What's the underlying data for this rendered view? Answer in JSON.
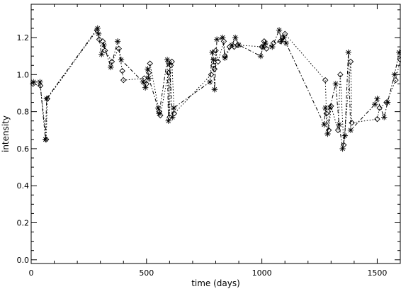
{
  "chart_data": {
    "type": "line",
    "title": "",
    "xlabel": "time (days)",
    "ylabel": "intensity",
    "xlim": [
      0,
      1600
    ],
    "ylim": [
      -0.02,
      1.38
    ],
    "xticks": [
      0,
      500,
      1000,
      1500
    ],
    "yticks": [
      0.0,
      0.2,
      0.4,
      0.6,
      0.8,
      1.0,
      1.2
    ],
    "ytick_labels": [
      "0.0",
      "0.2",
      "0.4",
      "0.6",
      "0.8",
      "1.0",
      "1.2"
    ],
    "grid": false,
    "legend": "none",
    "colors": {
      "line": "#000000",
      "background": "#ffffff"
    },
    "series": [
      {
        "marker": "diamond",
        "line_style": "dotted",
        "points": [
          [
            8,
            0.95
          ],
          [
            40,
            0.94
          ],
          [
            65,
            0.65
          ],
          [
            70,
            0.87
          ],
          [
            285,
            1.24
          ],
          [
            295,
            1.19
          ],
          [
            310,
            1.18
          ],
          [
            320,
            1.13
          ],
          [
            350,
            1.07
          ],
          [
            380,
            1.14
          ],
          [
            395,
            1.02
          ],
          [
            400,
            0.97
          ],
          [
            490,
            0.98
          ],
          [
            500,
            0.95
          ],
          [
            510,
            1.01
          ],
          [
            515,
            1.06
          ],
          [
            555,
            0.8
          ],
          [
            560,
            0.78
          ],
          [
            595,
            1.01
          ],
          [
            600,
            0.77
          ],
          [
            605,
            1.05
          ],
          [
            610,
            1.07
          ],
          [
            620,
            0.79
          ],
          [
            780,
            1.0
          ],
          [
            790,
            1.05
          ],
          [
            795,
            1.03
          ],
          [
            800,
            1.13
          ],
          [
            810,
            1.07
          ],
          [
            835,
            1.18
          ],
          [
            840,
            1.1
          ],
          [
            860,
            1.15
          ],
          [
            880,
            1.15
          ],
          [
            895,
            1.16
          ],
          [
            1000,
            1.15
          ],
          [
            1010,
            1.18
          ],
          [
            1020,
            1.14
          ],
          [
            1050,
            1.17
          ],
          [
            1080,
            1.18
          ],
          [
            1090,
            1.2
          ],
          [
            1100,
            1.22
          ],
          [
            1275,
            0.97
          ],
          [
            1280,
            0.79
          ],
          [
            1290,
            0.7
          ],
          [
            1300,
            0.83
          ],
          [
            1330,
            0.7
          ],
          [
            1340,
            1.0
          ],
          [
            1355,
            0.62
          ],
          [
            1385,
            1.07
          ],
          [
            1390,
            0.74
          ],
          [
            1500,
            0.76
          ],
          [
            1510,
            0.82
          ],
          [
            1540,
            0.85
          ],
          [
            1580,
            0.97
          ],
          [
            1600,
            1.08
          ]
        ]
      },
      {
        "marker": "asterisk",
        "line_style": "dash-dot",
        "points": [
          [
            10,
            0.96
          ],
          [
            38,
            0.96
          ],
          [
            62,
            0.65
          ],
          [
            67,
            0.87
          ],
          [
            288,
            1.25
          ],
          [
            292,
            1.22
          ],
          [
            305,
            1.11
          ],
          [
            315,
            1.16
          ],
          [
            345,
            1.04
          ],
          [
            375,
            1.18
          ],
          [
            390,
            1.08
          ],
          [
            485,
            0.96
          ],
          [
            495,
            0.93
          ],
          [
            505,
            1.03
          ],
          [
            510,
            0.98
          ],
          [
            550,
            0.82
          ],
          [
            555,
            0.79
          ],
          [
            590,
            1.08
          ],
          [
            595,
            0.75
          ],
          [
            600,
            1.06
          ],
          [
            612,
            0.77
          ],
          [
            618,
            0.82
          ],
          [
            775,
            0.96
          ],
          [
            785,
            1.12
          ],
          [
            790,
            1.08
          ],
          [
            795,
            0.92
          ],
          [
            805,
            1.19
          ],
          [
            830,
            1.2
          ],
          [
            840,
            1.09
          ],
          [
            870,
            1.16
          ],
          [
            885,
            1.2
          ],
          [
            900,
            1.16
          ],
          [
            995,
            1.1
          ],
          [
            1005,
            1.15
          ],
          [
            1015,
            1.17
          ],
          [
            1045,
            1.15
          ],
          [
            1075,
            1.24
          ],
          [
            1085,
            1.18
          ],
          [
            1095,
            1.2
          ],
          [
            1105,
            1.17
          ],
          [
            1270,
            0.73
          ],
          [
            1275,
            0.82
          ],
          [
            1285,
            0.68
          ],
          [
            1295,
            0.82
          ],
          [
            1320,
            0.95
          ],
          [
            1335,
            0.73
          ],
          [
            1350,
            0.6
          ],
          [
            1360,
            0.67
          ],
          [
            1375,
            1.12
          ],
          [
            1385,
            0.7
          ],
          [
            1490,
            0.84
          ],
          [
            1500,
            0.87
          ],
          [
            1530,
            0.77
          ],
          [
            1545,
            0.85
          ],
          [
            1575,
            1.0
          ],
          [
            1595,
            1.12
          ]
        ]
      }
    ]
  }
}
